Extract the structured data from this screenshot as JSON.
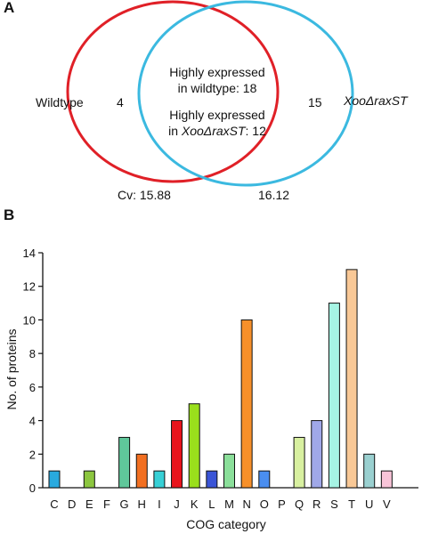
{
  "venn": {
    "panel_label": "A",
    "left_set": {
      "name": "Wildtype",
      "unique": "4",
      "color": "#e02027"
    },
    "right_set": {
      "name": "XooΔraxST",
      "unique": "15",
      "color": "#3bb9e0"
    },
    "overlap_line1": "Highly expressed",
    "overlap_line2": "in wildtype: 18",
    "overlap_line3": "Highly expressed",
    "overlap_line4_prefix": "in ",
    "overlap_line4_italic": "XooΔraxST",
    "overlap_line4_suffix": ": 12",
    "cv_left": "Cv: 15.88",
    "cv_right": "16.12"
  },
  "chart_data": {
    "panel_label": "B",
    "type": "bar",
    "xlabel": "COG category",
    "ylabel": "No. of proteins",
    "ylim": [
      0,
      14
    ],
    "yticks": [
      0,
      2,
      4,
      6,
      8,
      10,
      12,
      14
    ],
    "grid": false,
    "categories": [
      "C",
      "D",
      "E",
      "F",
      "G",
      "H",
      "I",
      "J",
      "K",
      "L",
      "M",
      "N",
      "O",
      "P",
      "Q",
      "R",
      "S",
      "T",
      "U",
      "V"
    ],
    "values": [
      1,
      0,
      1,
      0,
      3,
      2,
      1,
      4,
      5,
      1,
      2,
      10,
      1,
      0,
      3,
      4,
      11,
      13,
      2,
      1
    ],
    "colors": [
      "#29aadf",
      "#ffffff",
      "#8cc63f",
      "#ffffff",
      "#5fc79a",
      "#f26f21",
      "#37d0d6",
      "#e8141c",
      "#9adf1c",
      "#3a54d6",
      "#8bdf9a",
      "#f7902a",
      "#4a8ef0",
      "#ffffff",
      "#d8f0a0",
      "#a0a8e8",
      "#a6f4e4",
      "#f9c896",
      "#9ad0d0",
      "#f8c4d8"
    ]
  }
}
